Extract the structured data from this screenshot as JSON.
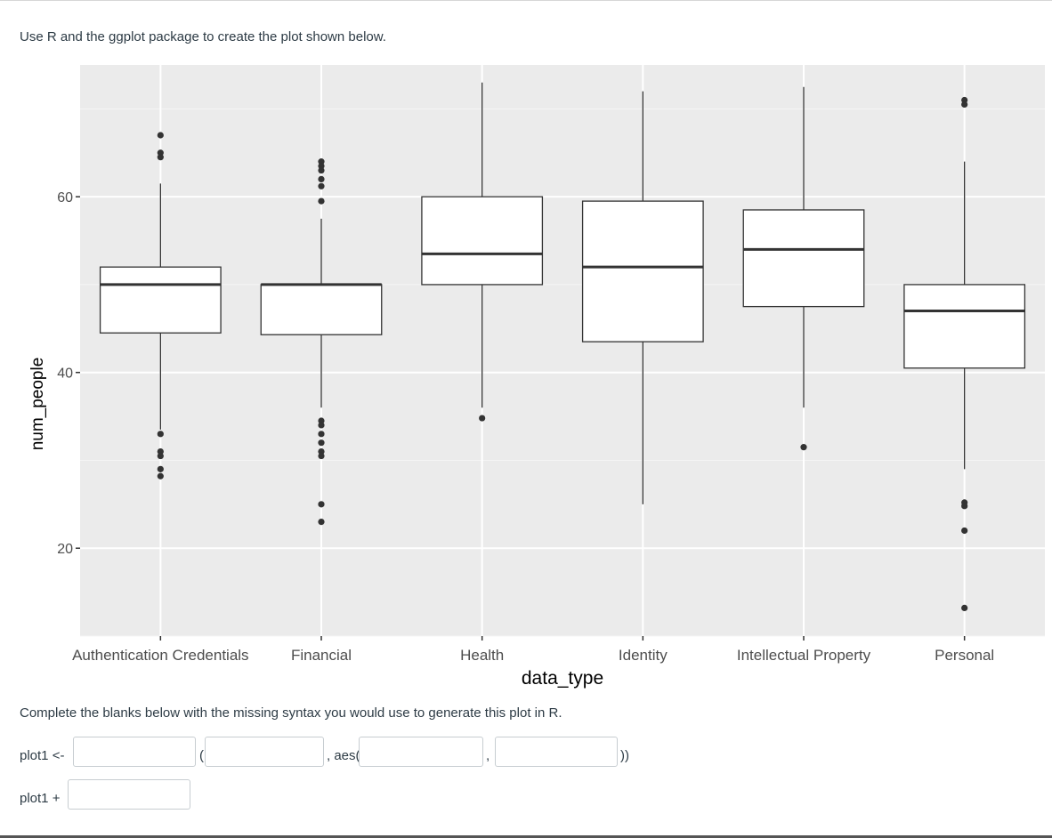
{
  "question": {
    "prompt": "Use R and the ggplot package to create the plot shown below.",
    "instruction": "Complete the blanks below with the missing syntax you would use to generate this plot in R."
  },
  "code": {
    "line1_prefix": "plot1 <-",
    "line1_paren": "(",
    "line1_aes": ", aes(",
    "line1_comma": ",",
    "line1_close": "))",
    "line2_prefix": "plot1 +",
    "blanks": [
      "",
      "",
      "",
      "",
      ""
    ]
  },
  "chart_data": {
    "type": "boxplot",
    "xlabel": "data_type",
    "ylabel": "num_people",
    "ylim": [
      10,
      75
    ],
    "yticks": [
      20,
      40,
      60
    ],
    "grid": true,
    "categories": [
      "Authentication Credentials",
      "Financial",
      "Health",
      "Identity",
      "Intellectual Property",
      "Personal"
    ],
    "boxes": [
      {
        "category": "Authentication Credentials",
        "whisker_low": 33.5,
        "q1": 44.5,
        "median": 50,
        "q3": 52,
        "whisker_high": 61.5,
        "outliers": [
          67,
          65,
          64.5,
          33,
          31,
          30.5,
          29,
          28.2
        ]
      },
      {
        "category": "Financial",
        "whisker_low": 36,
        "q1": 44.3,
        "median": 50,
        "q3": 50,
        "whisker_high": 57.5,
        "outliers": [
          64,
          63.5,
          63,
          62,
          61.2,
          59.5,
          34.5,
          34,
          33,
          32,
          31,
          30.5,
          25,
          23
        ]
      },
      {
        "category": "Health",
        "whisker_low": 36,
        "q1": 50,
        "median": 53.5,
        "q3": 60,
        "whisker_high": 73,
        "outliers": [
          34.8
        ]
      },
      {
        "category": "Identity",
        "whisker_low": 25,
        "q1": 43.5,
        "median": 52,
        "q3": 59.5,
        "whisker_high": 72,
        "outliers": []
      },
      {
        "category": "Intellectual Property",
        "whisker_low": 36,
        "q1": 47.5,
        "median": 54,
        "q3": 58.5,
        "whisker_high": 72.5,
        "outliers": [
          31.5
        ]
      },
      {
        "category": "Personal",
        "whisker_low": 29,
        "q1": 40.5,
        "median": 47,
        "q3": 50,
        "whisker_high": 64,
        "outliers": [
          71,
          70.5,
          25.2,
          24.8,
          22,
          13.2
        ]
      }
    ]
  }
}
